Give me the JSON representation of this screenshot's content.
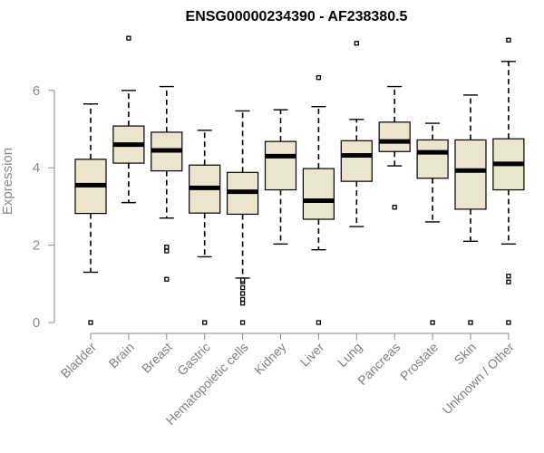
{
  "chart_data": {
    "type": "boxplot",
    "title": "ENSG00000234390 - AF238380.5",
    "xlabel": "",
    "ylabel": "Expression",
    "ylim": [
      0,
      7.4
    ],
    "yticks": [
      0,
      2,
      4,
      6
    ],
    "categories": [
      "Bladder",
      "Brain",
      "Breast",
      "Gastric",
      "Hematopoietic cells",
      "Kidney",
      "Liver",
      "Lung",
      "Pancreas",
      "Prostate",
      "Skin",
      "Unknown / Other"
    ],
    "boxes": [
      {
        "name": "Bladder",
        "min": 1.3,
        "q1": 2.82,
        "median": 3.55,
        "q3": 4.22,
        "max": 5.65,
        "outliers": [
          0
        ]
      },
      {
        "name": "Brain",
        "min": 3.1,
        "q1": 4.12,
        "median": 4.6,
        "q3": 5.08,
        "max": 6.0,
        "outliers": [
          7.35
        ]
      },
      {
        "name": "Breast",
        "min": 2.7,
        "q1": 3.92,
        "median": 4.45,
        "q3": 4.92,
        "max": 6.1,
        "outliers": [
          1.12,
          1.85,
          1.95
        ]
      },
      {
        "name": "Gastric",
        "min": 1.7,
        "q1": 2.83,
        "median": 3.48,
        "q3": 4.07,
        "max": 4.97,
        "outliers": [
          0
        ]
      },
      {
        "name": "Hematopoietic cells",
        "min": 1.15,
        "q1": 2.8,
        "median": 3.38,
        "q3": 3.88,
        "max": 5.47,
        "outliers": [
          0,
          0.5,
          0.6,
          0.75,
          0.9,
          1.05,
          1.1
        ]
      },
      {
        "name": "Kidney",
        "min": 2.03,
        "q1": 3.43,
        "median": 4.3,
        "q3": 4.68,
        "max": 5.5,
        "outliers": []
      },
      {
        "name": "Liver",
        "min": 1.88,
        "q1": 2.67,
        "median": 3.15,
        "q3": 3.98,
        "max": 5.58,
        "outliers": [
          0,
          6.33
        ]
      },
      {
        "name": "Lung",
        "min": 2.48,
        "q1": 3.65,
        "median": 4.32,
        "q3": 4.7,
        "max": 5.25,
        "outliers": [
          7.22
        ]
      },
      {
        "name": "Pancreas",
        "min": 4.05,
        "q1": 4.42,
        "median": 4.68,
        "q3": 5.18,
        "max": 6.1,
        "outliers": [
          2.98
        ]
      },
      {
        "name": "Prostate",
        "min": 2.6,
        "q1": 3.73,
        "median": 4.4,
        "q3": 4.72,
        "max": 5.15,
        "outliers": [
          0
        ]
      },
      {
        "name": "Skin",
        "min": 2.1,
        "q1": 2.93,
        "median": 3.93,
        "q3": 4.72,
        "max": 5.88,
        "outliers": [
          0
        ]
      },
      {
        "name": "Unknown / Other",
        "min": 2.03,
        "q1": 3.43,
        "median": 4.1,
        "q3": 4.75,
        "max": 6.75,
        "outliers": [
          0,
          1.05,
          1.2,
          7.3
        ]
      }
    ]
  }
}
